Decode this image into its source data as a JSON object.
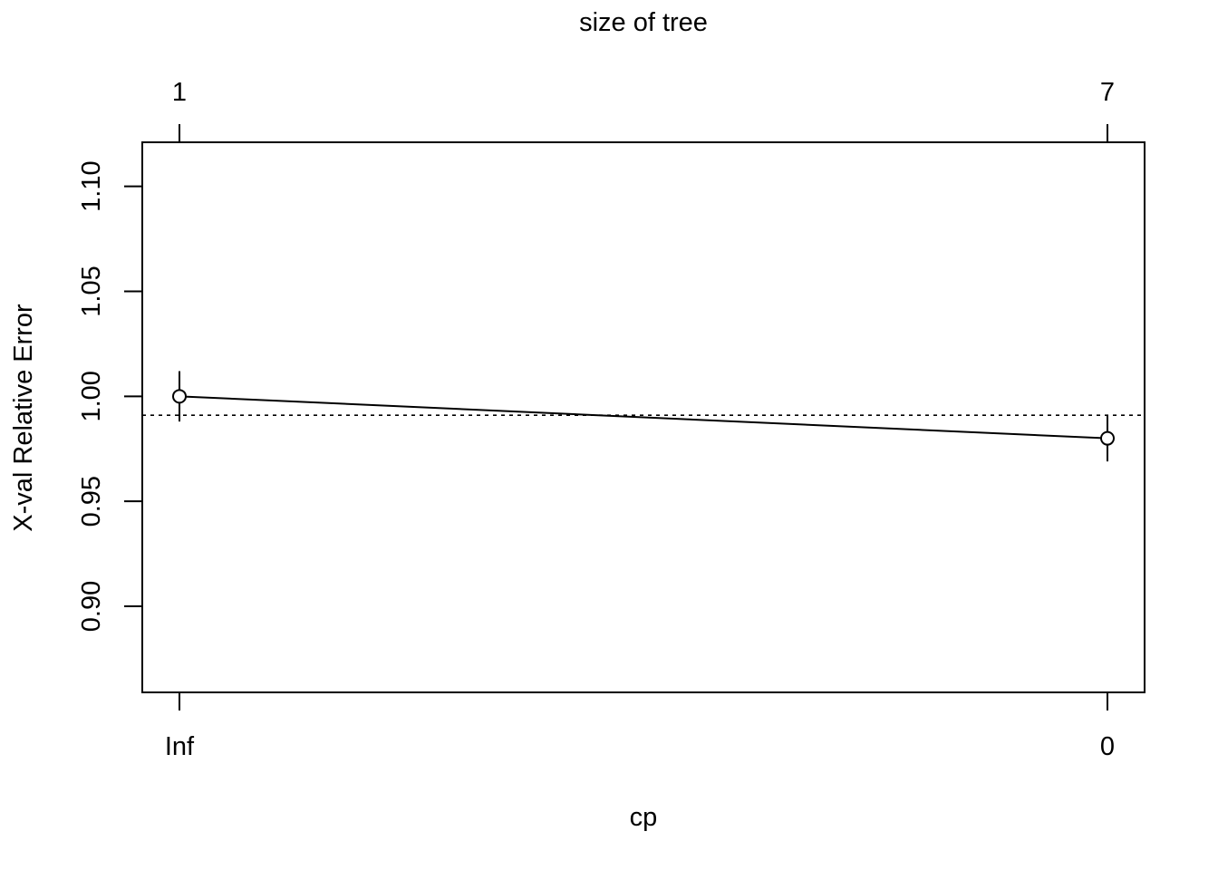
{
  "chart_data": {
    "type": "line",
    "top_axis_title": "size of tree",
    "xlabel": "cp",
    "ylabel": "X-val Relative Error",
    "x_categories": [
      "Inf",
      "0"
    ],
    "top_categories": [
      "1",
      "7"
    ],
    "y_ticks": [
      0.9,
      0.95,
      1.0,
      1.05,
      1.1
    ],
    "y_tick_labels": [
      "0.90",
      "0.95",
      "1.00",
      "1.05",
      "1.10"
    ],
    "ylim": [
      0.859,
      1.121
    ],
    "series": [
      {
        "values": [
          1.0,
          0.98
        ],
        "error_low": [
          0.988,
          0.969
        ],
        "error_high": [
          1.012,
          0.991
        ]
      }
    ],
    "reference_line": {
      "y": 0.991,
      "style": "dotted"
    },
    "grid": false,
    "legend": "none"
  }
}
